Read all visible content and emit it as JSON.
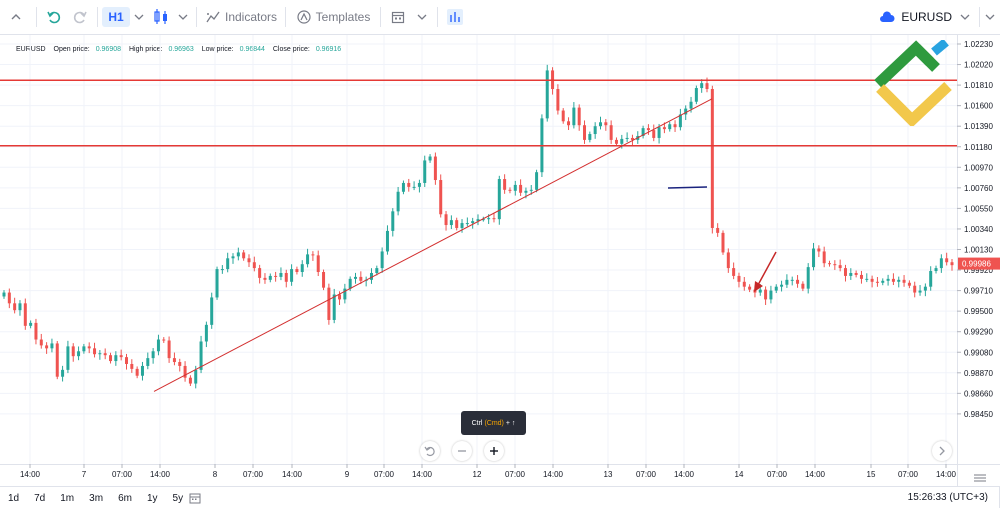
{
  "toolbar": {
    "interval": "H1",
    "indicators_label": "Indicators",
    "templates_label": "Templates",
    "symbol": "EURUSD"
  },
  "legend": {
    "symbol": "EURUSD",
    "open_label": "Open price:",
    "open_value": "0.96908",
    "high_label": "High price:",
    "high_value": "0.96963",
    "low_label": "Low price:",
    "low_value": "0.96844",
    "close_label": "Close price:",
    "close_value": "0.96916"
  },
  "tooltip": {
    "prefix": "Ctrl",
    "cmd": "(Cmd)",
    "suffix": "+ ↑"
  },
  "bottom": {
    "ranges": [
      "1d",
      "7d",
      "1m",
      "3m",
      "6m",
      "1y",
      "5y"
    ],
    "clock": "15:26:33 (UTC+3)"
  },
  "colors": {
    "up": "#26a69a",
    "down": "#ef5350",
    "level": "#e53935",
    "trend": "#d32f2f",
    "mark": "#1a237e"
  },
  "chart_data": {
    "type": "candlestick",
    "y_ticks": [
      "1.02230",
      "1.02020",
      "1.01810",
      "1.01600",
      "1.01390",
      "1.01180",
      "1.00970",
      "1.00760",
      "1.00550",
      "1.00340",
      "1.00130",
      "0.99920",
      "0.99710",
      "0.99500",
      "0.99290",
      "0.99080",
      "0.98870",
      "0.98660",
      "0.98450"
    ],
    "ylim": [
      0.9845,
      1.0223
    ],
    "x_ticks": [
      "14:00",
      "7",
      "07:00",
      "14:00",
      "8",
      "07:00",
      "14:00",
      "9",
      "07:00",
      "14:00",
      "12",
      "07:00",
      "14:00",
      "13",
      "07:00",
      "14:00",
      "14",
      "07:00",
      "14:00",
      "15",
      "07:00",
      "14:00"
    ],
    "current_price": "0.99986",
    "horizontal_levels": [
      1.0186,
      1.0119
    ],
    "trendline": {
      "from": [
        0,
        0.9868
      ],
      "to": [
        132,
        1.0167
      ]
    },
    "close": [
      0.9969,
      0.9958,
      0.9951,
      0.9958,
      0.9935,
      0.9938,
      0.9921,
      0.9915,
      0.9912,
      0.9917,
      0.9883,
      0.989,
      0.9914,
      0.9904,
      0.9909,
      0.9914,
      0.9912,
      0.9906,
      0.9907,
      0.9905,
      0.9899,
      0.9905,
      0.9903,
      0.9896,
      0.9891,
      0.9884,
      0.9894,
      0.9902,
      0.9909,
      0.9921,
      0.992,
      0.9902,
      0.9898,
      0.9894,
      0.9882,
      0.9876,
      0.989,
      0.9919,
      0.9936,
      0.9964,
      0.9993,
      0.9993,
      1.0004,
      1.0006,
      1.001,
      1.0004,
      1.0,
      0.9994,
      0.9984,
      0.9982,
      0.9986,
      0.9985,
      0.9989,
      0.998,
      0.9993,
      0.999,
      0.9998,
      1.0008,
      1.0007,
      0.999,
      0.9974,
      0.9941,
      0.9967,
      0.9962,
      0.9973,
      0.9983,
      0.9985,
      0.9981,
      0.9982,
      0.9989,
      0.9994,
      1.0011,
      1.0032,
      1.0052,
      1.0072,
      1.0081,
      1.0077,
      1.0077,
      1.0081,
      1.0104,
      1.0108,
      1.0084,
      1.0049,
      1.0038,
      1.0043,
      1.0035,
      1.004,
      1.004,
      1.0042,
      1.0044,
      1.0044,
      1.0045,
      1.0044,
      1.0085,
      1.0074,
      1.0073,
      1.0079,
      1.0071,
      1.0073,
      1.0074,
      1.0092,
      1.0147,
      1.0196,
      1.0177,
      1.0155,
      1.0144,
      1.014,
      1.0158,
      1.014,
      1.0125,
      1.0131,
      1.0139,
      1.0143,
      1.014,
      1.0125,
      1.0121,
      1.0126,
      1.0127,
      1.0125,
      1.0129,
      1.0137,
      1.0135,
      1.0127,
      1.0138,
      1.0136,
      1.0141,
      1.0138,
      1.0151,
      1.0157,
      1.0164,
      1.0178,
      1.0183,
      1.0177,
      1.0035,
      1.003,
      1.001,
      0.9994,
      0.9986,
      0.998,
      0.9975,
      0.9972,
      0.9969,
      0.9972,
      0.9962,
      0.9971,
      0.9975,
      0.9977,
      0.9982,
      0.9982,
      0.9978,
      0.9973,
      0.9995,
      1.0014,
      1.0011,
      0.9999,
      0.9998,
      0.9997,
      0.9994,
      0.9986,
      0.9989,
      0.9987,
      0.9983,
      0.9983,
      0.998,
      0.9979,
      0.9981,
      0.9983,
      0.998,
      0.9982,
      0.9979,
      0.9976,
      0.9969,
      0.9971,
      0.9975,
      0.9991,
      0.9994,
      1.0004,
      1.0,
      0.9997
    ]
  }
}
